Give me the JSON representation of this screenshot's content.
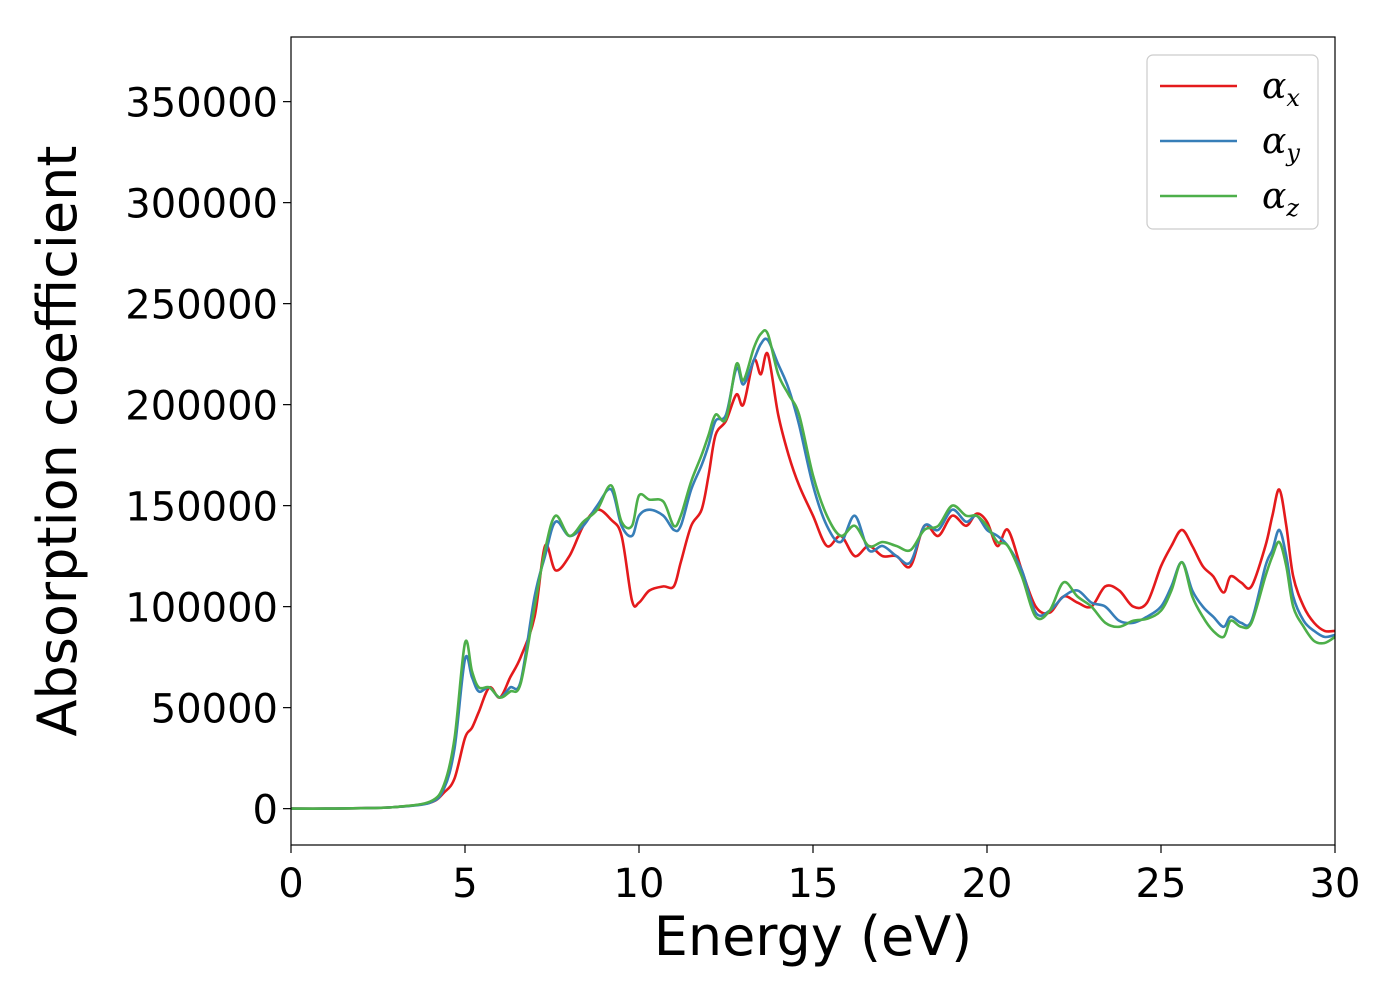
{
  "chart_data": {
    "type": "line",
    "title": "",
    "xlabel": "Energy (eV)",
    "ylabel": "Absorption coefficient",
    "xlim": [
      0,
      30
    ],
    "ylim": [
      -18000,
      382000
    ],
    "xticks": [
      0,
      5,
      10,
      15,
      20,
      25,
      30
    ],
    "yticks": [
      0,
      50000,
      100000,
      150000,
      200000,
      250000,
      300000,
      350000
    ],
    "grid": false,
    "legend_position": "top-right",
    "series": [
      {
        "name": "α",
        "name_subscript": "x",
        "color": "#e41a1c",
        "x": [
          0,
          1,
          2,
          3,
          4,
          4.4,
          4.7,
          5.0,
          5.2,
          5.4,
          5.7,
          6.0,
          6.3,
          6.6,
          7.0,
          7.3,
          7.6,
          8.0,
          8.4,
          8.8,
          9.2,
          9.5,
          9.8,
          10.0,
          10.3,
          10.7,
          11.0,
          11.2,
          11.5,
          11.8,
          12.0,
          12.2,
          12.5,
          12.8,
          13.0,
          13.3,
          13.5,
          13.7,
          14.0,
          14.3,
          14.6,
          15.0,
          15.4,
          15.8,
          16.2,
          16.6,
          17.0,
          17.4,
          17.8,
          18.2,
          18.6,
          19.0,
          19.4,
          19.7,
          20.0,
          20.3,
          20.6,
          21.0,
          21.4,
          21.8,
          22.2,
          22.6,
          23.0,
          23.4,
          23.8,
          24.2,
          24.6,
          25.0,
          25.3,
          25.6,
          25.9,
          26.2,
          26.5,
          26.8,
          27.0,
          27.3,
          27.6,
          28.0,
          28.2,
          28.4,
          28.6,
          28.8,
          29.1,
          29.4,
          29.7,
          30.0
        ],
        "y": [
          0,
          0,
          200,
          800,
          3000,
          8000,
          15000,
          35000,
          40000,
          48000,
          60000,
          55000,
          65000,
          75000,
          95000,
          130000,
          118000,
          125000,
          140000,
          148000,
          143000,
          135000,
          103000,
          102000,
          108000,
          110000,
          110000,
          122000,
          140000,
          148000,
          165000,
          185000,
          192000,
          205000,
          200000,
          222000,
          215000,
          225000,
          195000,
          175000,
          160000,
          145000,
          130000,
          135000,
          125000,
          130000,
          125000,
          125000,
          120000,
          140000,
          135000,
          145000,
          140000,
          146000,
          142000,
          130000,
          138000,
          118000,
          100000,
          97000,
          105000,
          102000,
          100000,
          110000,
          108000,
          100000,
          102000,
          120000,
          130000,
          138000,
          130000,
          120000,
          115000,
          107000,
          115000,
          112000,
          110000,
          130000,
          145000,
          158000,
          140000,
          115000,
          100000,
          92000,
          88000,
          88000
        ]
      },
      {
        "name": "α",
        "name_subscript": "y",
        "color": "#377eb8",
        "x": [
          0,
          1,
          2,
          3,
          4,
          4.4,
          4.7,
          5.0,
          5.2,
          5.4,
          5.7,
          6.0,
          6.3,
          6.6,
          7.0,
          7.3,
          7.6,
          8.0,
          8.4,
          8.8,
          9.2,
          9.5,
          9.8,
          10.0,
          10.3,
          10.7,
          11.0,
          11.2,
          11.5,
          11.8,
          12.0,
          12.2,
          12.5,
          12.8,
          13.0,
          13.3,
          13.5,
          13.7,
          14.0,
          14.3,
          14.6,
          15.0,
          15.4,
          15.8,
          16.2,
          16.6,
          17.0,
          17.4,
          17.8,
          18.2,
          18.6,
          19.0,
          19.4,
          19.7,
          20.0,
          20.3,
          20.6,
          21.0,
          21.4,
          21.8,
          22.2,
          22.6,
          23.0,
          23.4,
          23.8,
          24.2,
          24.6,
          25.0,
          25.3,
          25.6,
          25.9,
          26.2,
          26.5,
          26.8,
          27.0,
          27.3,
          27.6,
          28.0,
          28.2,
          28.4,
          28.6,
          28.8,
          29.1,
          29.4,
          29.7,
          30.0
        ],
        "y": [
          0,
          0,
          200,
          800,
          3000,
          10000,
          30000,
          74000,
          65000,
          58000,
          60000,
          55000,
          60000,
          63000,
          105000,
          125000,
          142000,
          135000,
          140000,
          150000,
          158000,
          140000,
          135000,
          145000,
          148000,
          145000,
          138000,
          140000,
          158000,
          170000,
          180000,
          192000,
          195000,
          218000,
          210000,
          222000,
          230000,
          232000,
          220000,
          208000,
          190000,
          160000,
          140000,
          132000,
          145000,
          128000,
          130000,
          125000,
          122000,
          140000,
          138000,
          148000,
          142000,
          145000,
          138000,
          135000,
          130000,
          118000,
          97000,
          98000,
          105000,
          108000,
          102000,
          100000,
          93000,
          92000,
          95000,
          100000,
          110000,
          122000,
          108000,
          100000,
          95000,
          90000,
          95000,
          92000,
          93000,
          120000,
          128000,
          138000,
          125000,
          105000,
          93000,
          88000,
          85000,
          86000
        ]
      },
      {
        "name": "α",
        "name_subscript": "z",
        "color": "#4daf4a",
        "x": [
          0,
          1,
          2,
          3,
          4,
          4.4,
          4.7,
          5.0,
          5.2,
          5.4,
          5.7,
          6.0,
          6.3,
          6.6,
          7.0,
          7.3,
          7.6,
          8.0,
          8.4,
          8.8,
          9.2,
          9.5,
          9.8,
          10.0,
          10.3,
          10.7,
          11.0,
          11.2,
          11.5,
          11.8,
          12.0,
          12.2,
          12.5,
          12.8,
          13.0,
          13.3,
          13.5,
          13.7,
          14.0,
          14.3,
          14.6,
          15.0,
          15.4,
          15.8,
          16.2,
          16.6,
          17.0,
          17.4,
          17.8,
          18.2,
          18.6,
          19.0,
          19.4,
          19.7,
          20.0,
          20.3,
          20.6,
          21.0,
          21.4,
          21.8,
          22.2,
          22.6,
          23.0,
          23.4,
          23.8,
          24.2,
          24.6,
          25.0,
          25.3,
          25.6,
          25.9,
          26.2,
          26.5,
          26.8,
          27.0,
          27.3,
          27.6,
          28.0,
          28.2,
          28.4,
          28.6,
          28.8,
          29.1,
          29.4,
          29.7,
          30.0
        ],
        "y": [
          0,
          0,
          200,
          800,
          3500,
          12000,
          35000,
          82000,
          68000,
          60000,
          60000,
          55000,
          58000,
          62000,
          100000,
          128000,
          145000,
          135000,
          142000,
          148000,
          160000,
          142000,
          140000,
          155000,
          153000,
          152000,
          140000,
          145000,
          162000,
          175000,
          185000,
          195000,
          193000,
          220000,
          212000,
          228000,
          235000,
          235000,
          215000,
          205000,
          195000,
          165000,
          145000,
          135000,
          140000,
          130000,
          132000,
          130000,
          128000,
          138000,
          140000,
          150000,
          145000,
          145000,
          140000,
          132000,
          130000,
          115000,
          95000,
          98000,
          112000,
          105000,
          100000,
          92000,
          90000,
          93000,
          94000,
          98000,
          108000,
          122000,
          105000,
          95000,
          88000,
          85000,
          93000,
          90000,
          92000,
          115000,
          125000,
          132000,
          120000,
          100000,
          90000,
          83000,
          82000,
          85000
        ]
      }
    ]
  }
}
